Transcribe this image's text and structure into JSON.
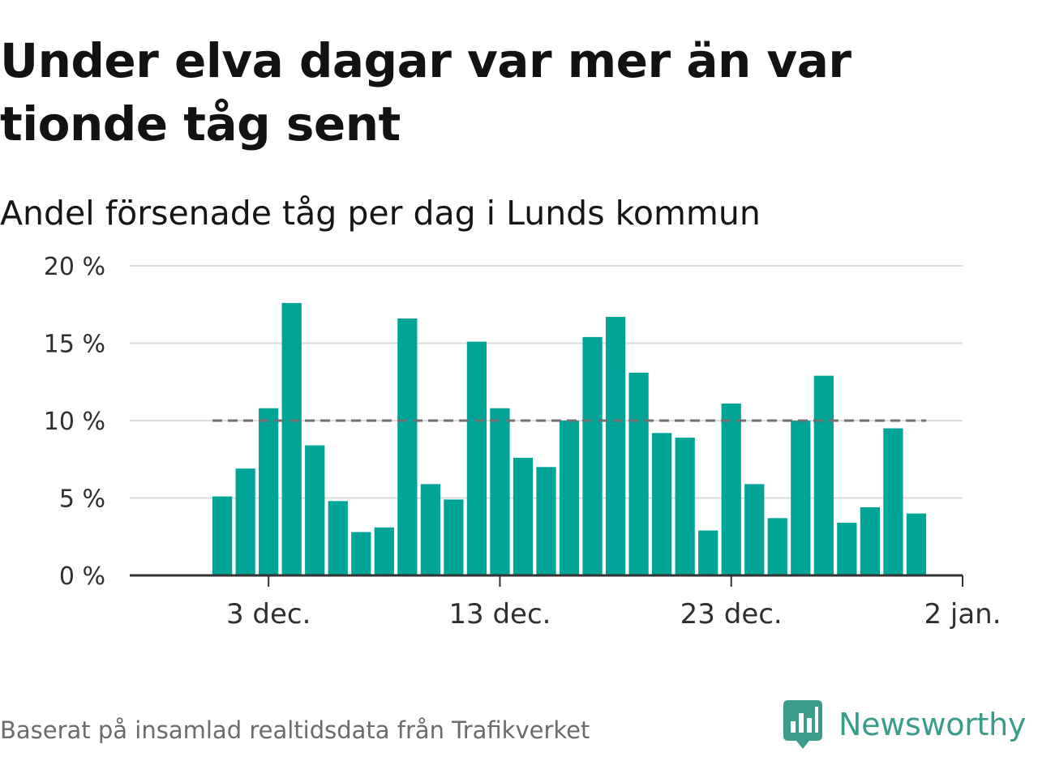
{
  "title": "Under elva dagar var mer än var tionde tåg sent",
  "subtitle": "Andel försenade tåg per dag i Lunds kommun",
  "source": "Baserat på insamlad realtidsdata från Trafikverket",
  "brand": {
    "name": "Newsworthy",
    "icon": "newsworthy-logo-icon",
    "color": "#3a9d8c"
  },
  "chart_data": {
    "type": "bar",
    "x": [
      "2023-12-01",
      "2023-12-02",
      "2023-12-03",
      "2023-12-04",
      "2023-12-05",
      "2023-12-06",
      "2023-12-07",
      "2023-12-08",
      "2023-12-09",
      "2023-12-10",
      "2023-12-11",
      "2023-12-12",
      "2023-12-13",
      "2023-12-14",
      "2023-12-15",
      "2023-12-16",
      "2023-12-17",
      "2023-12-18",
      "2023-12-19",
      "2023-12-20",
      "2023-12-21",
      "2023-12-22",
      "2023-12-23",
      "2023-12-24",
      "2023-12-25",
      "2023-12-26",
      "2023-12-27",
      "2023-12-28",
      "2023-12-29",
      "2023-12-30",
      "2023-12-31"
    ],
    "values": [
      5.1,
      6.9,
      10.8,
      17.6,
      8.4,
      4.8,
      2.8,
      3.1,
      16.6,
      5.9,
      4.9,
      15.1,
      10.8,
      7.6,
      7.0,
      10.0,
      15.4,
      16.7,
      13.1,
      9.2,
      8.9,
      2.9,
      11.1,
      5.9,
      3.7,
      10.0,
      12.9,
      3.4,
      4.4,
      9.5,
      4.0
    ],
    "bar_color": "#00a598",
    "reference_line": {
      "value": 10,
      "color": "#707070",
      "style": "dashed"
    },
    "y_ticks": [
      0,
      5,
      10,
      15,
      20
    ],
    "y_tick_labels": [
      "0 %",
      "5 %",
      "10 %",
      "15 %",
      "20 %"
    ],
    "ylim": [
      0,
      20
    ],
    "x_ticks": [
      {
        "date": "2023-12-03",
        "label": "3 dec."
      },
      {
        "date": "2023-12-13",
        "label": "13 dec."
      },
      {
        "date": "2023-12-23",
        "label": "23 dec."
      },
      {
        "date": "2024-01-02",
        "label": "2 jan."
      }
    ],
    "xlim": [
      "2023-11-27",
      "2024-01-02"
    ],
    "grid": true,
    "xlabel": "",
    "ylabel": ""
  }
}
